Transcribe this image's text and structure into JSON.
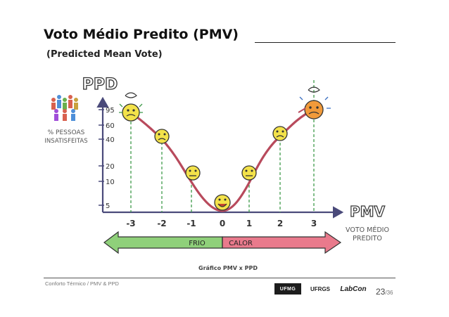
{
  "slide": {
    "title": "Voto Médio Predito (PMV)",
    "subtitle": "(Predicted Mean Vote)",
    "footer": "Conforto Térmico / PMV & PPD",
    "page_current": "23",
    "page_total": "/36",
    "logos": [
      "UFMG",
      "UFRGS",
      "LabCon"
    ]
  },
  "figure": {
    "y_axis_title": "PPD",
    "y_axis_caption": [
      "% PESSOAS",
      "INSATISFEITAS"
    ],
    "y_ticks": [
      "95",
      "60",
      "40",
      "20",
      "10",
      "5"
    ],
    "x_axis_title": "PMV",
    "x_axis_caption": [
      "VOTO MÉDIO",
      "PREDITO"
    ],
    "x_ticks": [
      "-3",
      "-2",
      "-1",
      "0",
      "1",
      "2",
      "3"
    ],
    "cold_label": "FRIO",
    "warm_label": "CALOR",
    "caption": "Gráfico PMV x PPD",
    "colors": {
      "curve": "#b84a5c",
      "guide": "#3f9a4a",
      "cold_arrow": "#8fd07a",
      "warm_arrow": "#e97a8c",
      "face": "#f3e24a",
      "hot_face": "#f19a3a"
    }
  }
}
